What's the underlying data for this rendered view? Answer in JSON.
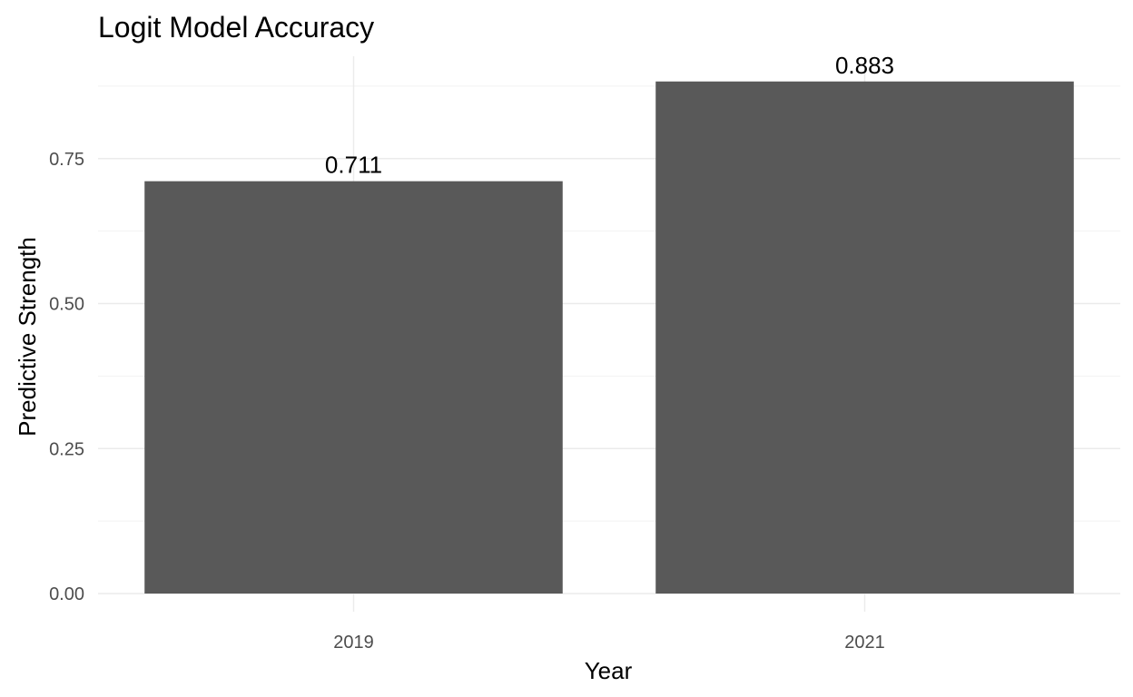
{
  "chart_data": {
    "type": "bar",
    "title": "Logit Model Accuracy",
    "xlabel": "Year",
    "ylabel": "Predictive Strength",
    "categories": [
      "2019",
      "2021"
    ],
    "values": [
      0.711,
      0.883
    ],
    "data_labels": [
      "0.711",
      "0.883"
    ],
    "ylim": [
      0,
      0.9
    ],
    "y_ticks": [
      0,
      0.25,
      0.5,
      0.75
    ],
    "y_tick_labels": [
      "0.00",
      "0.25",
      "0.50",
      "0.75"
    ],
    "y_minor_ticks": [
      0.125,
      0.375,
      0.625,
      0.875
    ],
    "grid": true,
    "legend": "none",
    "bar_color": "#595959",
    "grid_color": "#ebebeb",
    "minor_grid_color": "#f2f2f2"
  }
}
